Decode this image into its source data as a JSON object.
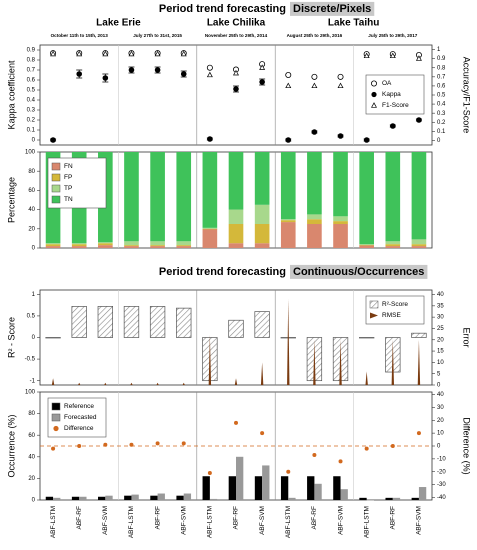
{
  "chart_data": [
    {
      "type": "scatter",
      "title": "Period trend forecasting",
      "subtitle": "Discrete/Pixels",
      "lakes": [
        "Lake Erie",
        "Lake Chilika",
        "Lake Taihu"
      ],
      "periods": [
        "October 11th to 15th, 2013",
        "July 27th to 31st, 2015",
        "November 25th to 29th, 2014",
        "August 25th to 29th, 2016",
        "July 25th to 29th, 2017"
      ],
      "ylabel": "Kappa coefficient",
      "y2label": "Accuracy/F1-Score",
      "ylim": [
        -0.05,
        0.95
      ],
      "yticks": [
        0,
        0.1,
        0.2,
        0.3,
        0.4,
        0.5,
        0.6,
        0.7,
        0.8,
        0.9
      ],
      "y2lim": [
        -0.05,
        1.05
      ],
      "y2ticks": [
        0,
        0.1,
        0.2,
        0.3,
        0.4,
        0.5,
        0.6,
        0.7,
        0.8,
        0.9,
        1
      ],
      "legend": "right",
      "series": [
        {
          "name": "OA",
          "axis": "y2",
          "marker": "circle-open",
          "color": "#000000",
          "values": [
            0.96,
            0.96,
            0.96,
            0.96,
            0.96,
            0.96,
            0.8,
            0.78,
            0.84,
            0.72,
            0.7,
            0.7,
            0.95,
            0.95,
            0.94
          ]
        },
        {
          "name": "Kappa",
          "marker": "circle",
          "color": "#000000",
          "values": [
            0,
            0.66,
            0.62,
            0.7,
            0.7,
            0.66,
            0.01,
            0.51,
            0.58,
            0,
            0.08,
            0.04,
            0,
            0.14,
            0.2
          ],
          "errors": [
            0.01,
            0.04,
            0.04,
            0.03,
            0.03,
            0.03,
            0.01,
            0.03,
            0.03,
            0.01,
            0.01,
            0.01,
            0.01,
            0.01,
            0.01
          ]
        },
        {
          "name": "F1-Score",
          "axis": "y2",
          "marker": "triangle",
          "color": "#000000",
          "values": [
            0.95,
            0.95,
            0.95,
            0.95,
            0.95,
            0.95,
            0.72,
            0.74,
            0.8,
            0.6,
            0.6,
            0.6,
            0.93,
            0.93,
            0.9
          ]
        }
      ]
    },
    {
      "type": "bar",
      "stacked": true,
      "ylabel": "Percentage",
      "ylim": [
        0,
        100
      ],
      "yticks": [
        0,
        20,
        40,
        60,
        80,
        100
      ],
      "legend": "left",
      "series": [
        {
          "name": "FN",
          "marker": "bar",
          "color": "#d9876e",
          "values": [
            2,
            2,
            3,
            2,
            2,
            2,
            20,
            5,
            5,
            27,
            25,
            25,
            3,
            2,
            2
          ]
        },
        {
          "name": "FP",
          "marker": "bar",
          "color": "#d4b83a",
          "values": [
            2,
            2,
            2,
            1,
            1,
            1,
            0,
            20,
            20,
            2,
            5,
            3,
            0,
            2,
            2
          ]
        },
        {
          "name": "TP",
          "marker": "bar",
          "color": "#a8d88c",
          "values": [
            1,
            1,
            1,
            4,
            4,
            4,
            1,
            15,
            20,
            1,
            5,
            5,
            1,
            3,
            5
          ]
        },
        {
          "name": "TN",
          "marker": "bar",
          "color": "#3fc25a",
          "values": [
            95,
            95,
            94,
            93,
            93,
            93,
            79,
            60,
            55,
            70,
            65,
            67,
            96,
            93,
            91
          ]
        }
      ]
    },
    {
      "type": "bar",
      "title": "Period trend forecasting",
      "subtitle": "Continuous/Occurrences",
      "ylabel": "R² - Score",
      "y2label": "Error",
      "ylim": [
        -1.1,
        1.1
      ],
      "yticks": [
        -1,
        -0.5,
        0,
        0.5,
        1
      ],
      "y2lim": [
        0,
        42
      ],
      "y2ticks": [
        0,
        5,
        10,
        15,
        20,
        25,
        30,
        35,
        40
      ],
      "legend": "right",
      "series": [
        {
          "name": "R²-Score",
          "marker": "hatched-bar",
          "color": "#c0506a",
          "values": [
            0,
            0.72,
            0.72,
            0.72,
            0.72,
            0.68,
            -1,
            0.4,
            0.6,
            0,
            -1,
            -1,
            0,
            -0.8,
            0.1
          ]
        },
        {
          "name": "RMSE",
          "axis": "y2",
          "marker": "spike",
          "color": "#7a3b10",
          "values": [
            3,
            1,
            1,
            1,
            1,
            1,
            22,
            3,
            10,
            38,
            20,
            20,
            6,
            20,
            20
          ]
        }
      ]
    },
    {
      "type": "bar",
      "ylabel": "Occurrence (%)",
      "y2label": "Difference (%)",
      "categories": [
        "ABF-LSTM",
        "ABF-RF",
        "ABF-SVM",
        "ABF-LSTM",
        "ABF-RF",
        "ABF-SVM",
        "ABF-LSTM",
        "ABF-RF",
        "ABF-SVM",
        "ABF-LSTM",
        "ABF-RF",
        "ABF-SVM",
        "ABF-LSTM",
        "ABF-RF",
        "ABF-SVM"
      ],
      "ylim": [
        0,
        100
      ],
      "yticks": [
        0,
        20,
        40,
        60,
        80,
        100
      ],
      "y2lim": [
        -42,
        42
      ],
      "y2ticks": [
        -40,
        -30,
        -20,
        -10,
        0,
        10,
        20,
        30,
        40
      ],
      "y2_reference_line": 0,
      "legend": "left",
      "series": [
        {
          "name": "Reference",
          "marker": "bar",
          "color": "#000000",
          "values": [
            3,
            3,
            3,
            4,
            4,
            4,
            22,
            22,
            22,
            22,
            22,
            22,
            2,
            2,
            2
          ]
        },
        {
          "name": "Forecasted",
          "marker": "bar",
          "color": "#999999",
          "values": [
            2,
            3,
            4,
            5,
            6,
            6,
            1,
            40,
            32,
            2,
            15,
            10,
            0,
            2,
            12
          ]
        },
        {
          "name": "Difference",
          "axis": "y2",
          "marker": "point",
          "color": "#d2691e",
          "values": [
            -2,
            0,
            1,
            1,
            2,
            2,
            -21,
            18,
            10,
            -20,
            -7,
            -12,
            -2,
            0,
            10
          ]
        }
      ]
    }
  ]
}
